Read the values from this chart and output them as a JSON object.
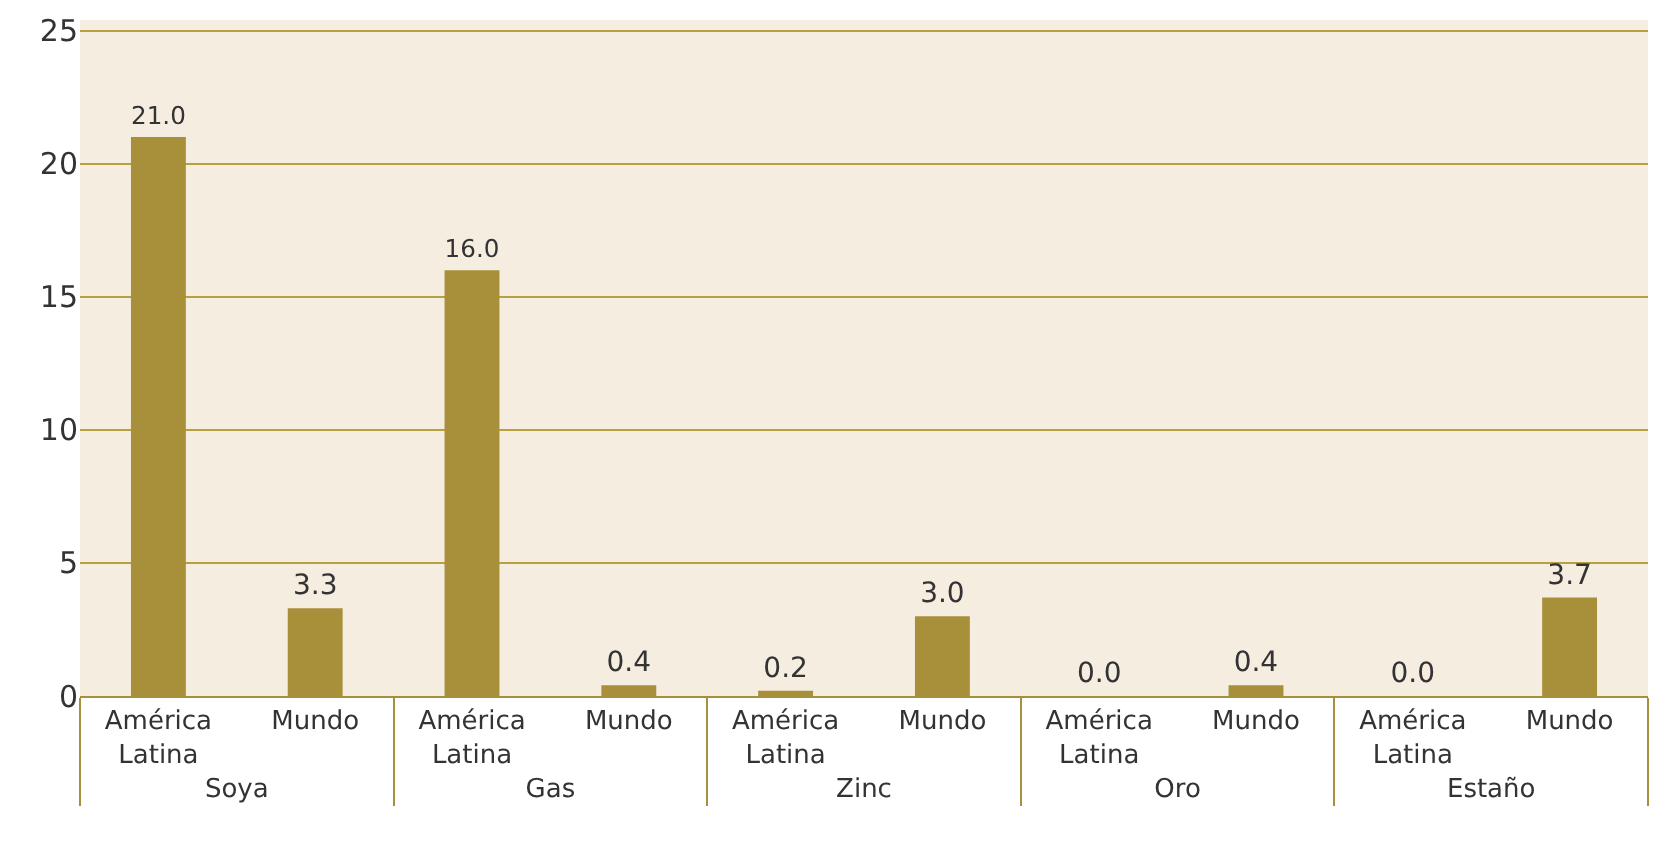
{
  "chart_data": {
    "type": "bar",
    "categories": [
      "América Latina",
      "Mundo",
      "América Latina",
      "Mundo",
      "América Latina",
      "Mundo",
      "América Latina",
      "Mundo",
      "América Latina",
      "Mundo"
    ],
    "values": [
      21.0,
      3.3,
      16.0,
      0.4,
      0.2,
      3.0,
      0.0,
      0.4,
      0.0,
      3.7
    ],
    "value_labels": [
      "21.0",
      "3.3",
      "16.0",
      "0.4",
      "0.2",
      "3.0",
      "0.0",
      "0.4",
      "0.0",
      "3.7"
    ],
    "color": "#a88f3a",
    "annotations": [
      "Soya",
      "Gas",
      "Zinc",
      "Oro",
      "Estaño"
    ],
    "ylim": [
      0,
      25.4
    ],
    "yticks": [
      0,
      5,
      10,
      15,
      20,
      25
    ],
    "grid": "y"
  }
}
